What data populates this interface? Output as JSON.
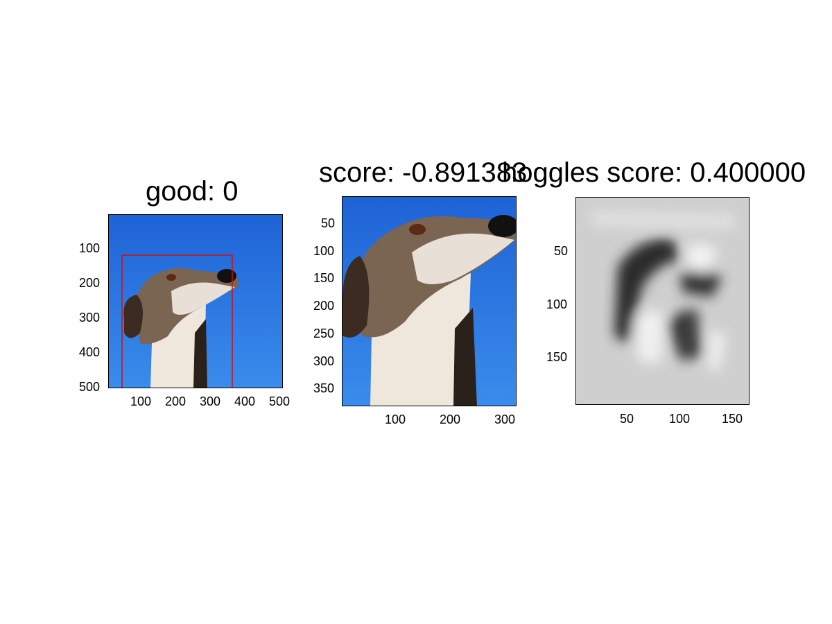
{
  "panels": [
    {
      "title": "good: 0",
      "xticks": [
        "100",
        "200",
        "300",
        "400",
        "500"
      ],
      "yticks": [
        "100",
        "200",
        "300",
        "400",
        "500"
      ],
      "image": "dog-photo",
      "bbox_overlay": "red-rectangle"
    },
    {
      "title": "score: -0.891383",
      "xticks": [
        "100",
        "200",
        "300"
      ],
      "yticks": [
        "50",
        "100",
        "150",
        "200",
        "250",
        "300",
        "350"
      ],
      "image": "dog-photo-crop"
    },
    {
      "title": "hoggles score: 0.400000",
      "xticks": [
        "50",
        "100",
        "150"
      ],
      "yticks": [
        "50",
        "100",
        "150"
      ],
      "image": "hog-visualization"
    }
  ],
  "colors": {
    "sky": "#1f6fdc",
    "bbox": "#cc1111"
  }
}
